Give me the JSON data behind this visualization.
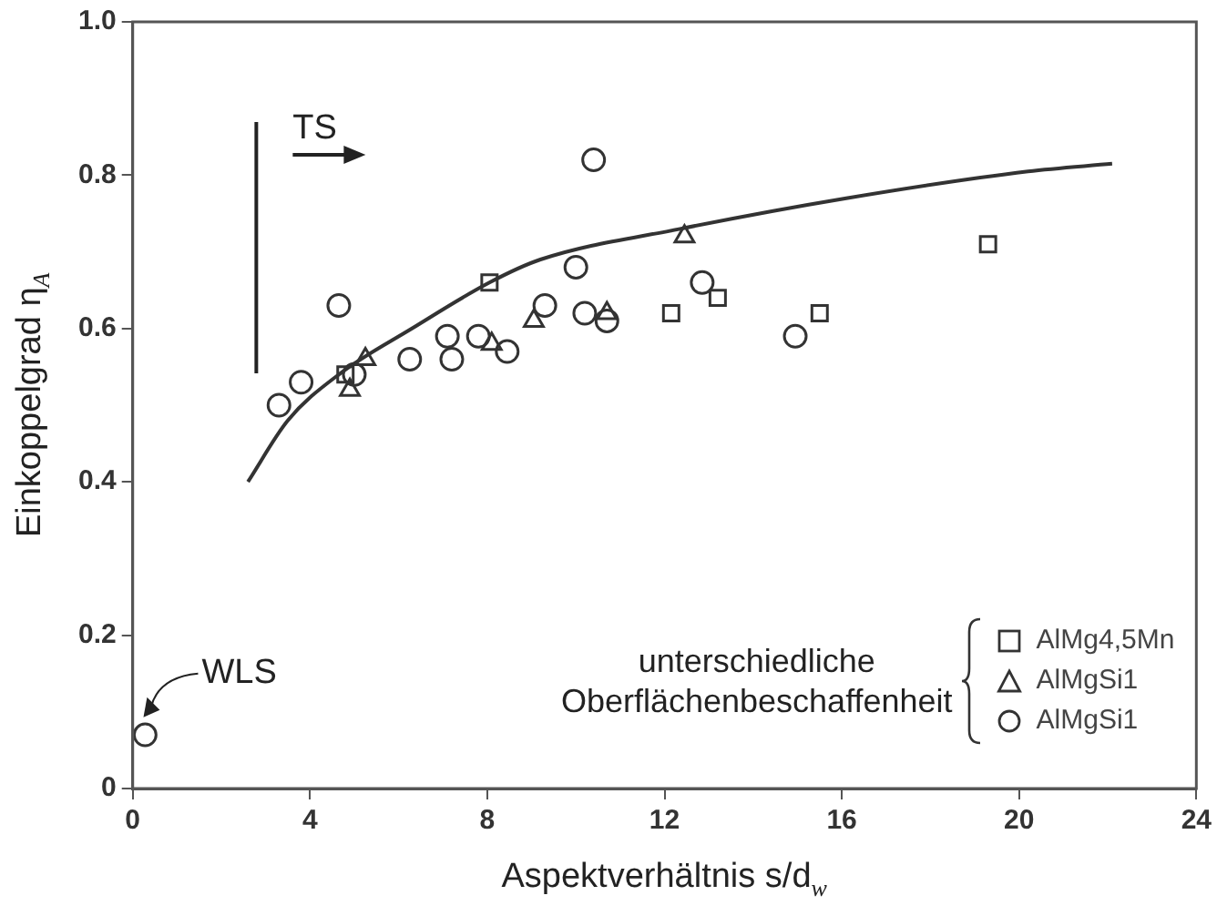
{
  "chart_data": {
    "type": "scatter",
    "xlabel": "Aspektverhältnis s/d$_{w}$",
    "ylabel": "Einkoppelgrad η$_{A}$",
    "legend_title": "unterschiedliche Oberflächenbeschaffenheit",
    "legend": "bottom right",
    "grid": false,
    "xlim": [
      0,
      24
    ],
    "xticks": [
      0,
      4,
      8,
      12,
      16,
      20,
      24
    ],
    "ylim": [
      0,
      1
    ],
    "yticks": [
      0,
      0.2,
      0.4,
      0.6,
      0.8,
      {
        "value": 1,
        "label": "1.0"
      }
    ],
    "series": [
      {
        "name": "AlMg4,5Mn",
        "color": "#333333",
        "marker": "square",
        "x": [
          4.8,
          8.05,
          12.15,
          13.2,
          15.5,
          19.3
        ],
        "values": [
          0.54,
          0.66,
          0.62,
          0.64,
          0.62,
          0.71
        ]
      },
      {
        "name": "AlMgSi1",
        "color": "#333333",
        "marker": "triangle",
        "x": [
          4.9,
          5.25,
          8.1,
          9.05,
          10.7,
          12.45
        ],
        "values": [
          0.52,
          0.56,
          0.58,
          0.61,
          0.62,
          0.72
        ]
      },
      {
        "name": "AlMgSi1",
        "color": "#333333",
        "marker": "circle",
        "x": [
          0.28,
          3.3,
          3.8,
          4.65,
          5.0,
          6.25,
          7.1,
          7.2,
          7.8,
          8.45,
          9.3,
          10.0,
          10.2,
          10.4,
          10.7,
          12.85,
          14.95
        ],
        "values": [
          0.07,
          0.5,
          0.53,
          0.63,
          0.54,
          0.56,
          0.59,
          0.56,
          0.59,
          0.57,
          0.63,
          0.68,
          0.62,
          0.82,
          0.61,
          0.66,
          0.59
        ]
      },
      {
        "type": "line",
        "color": "#333333",
        "marker": "none",
        "x": [
          2.6,
          3.5,
          4.65,
          6.3,
          8.05,
          9.2,
          12.35,
          16.1,
          20.2,
          22.1
        ],
        "values": [
          0.4,
          0.48,
          0.54,
          0.6,
          0.66,
          0.69,
          0.73,
          0.77,
          0.805,
          0.815
        ]
      }
    ],
    "annotations": [
      "TS",
      "WLS"
    ]
  }
}
